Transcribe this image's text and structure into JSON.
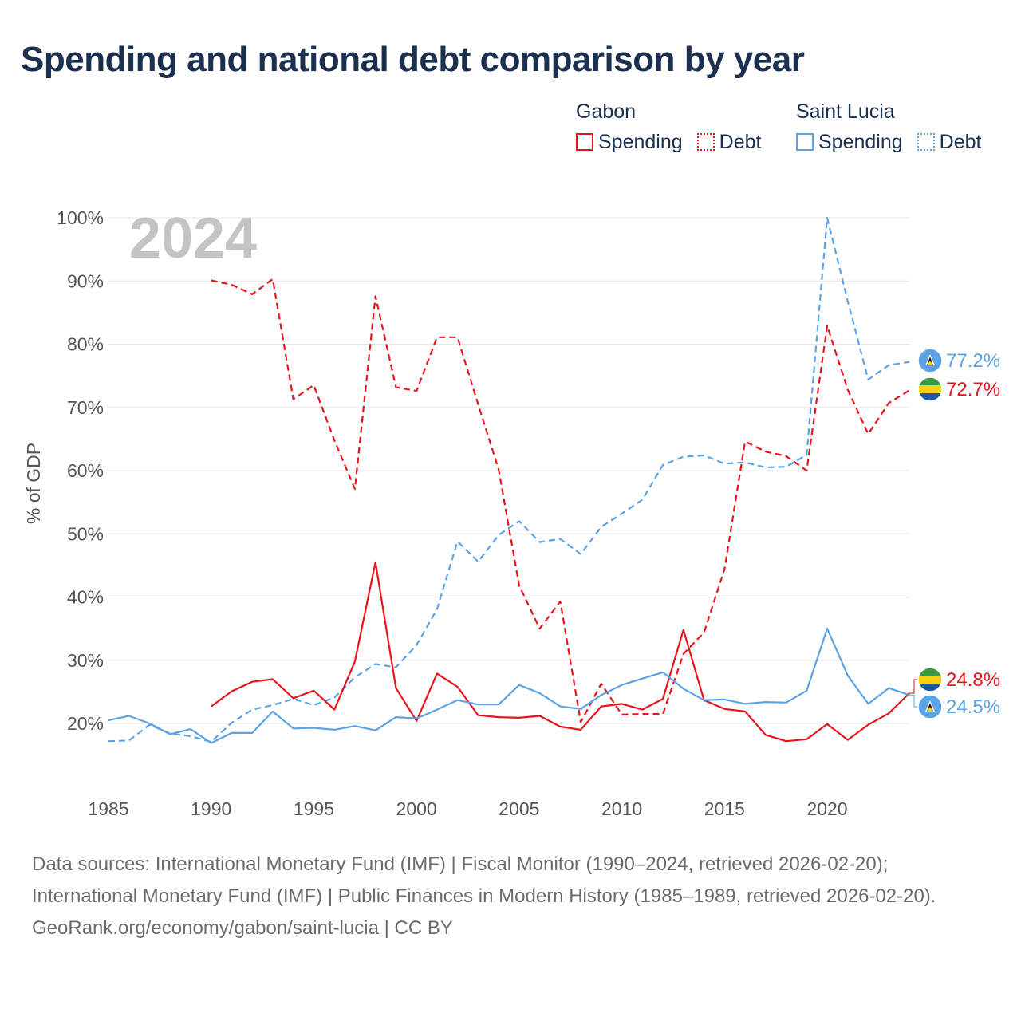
{
  "title": "Spending and national debt comparison by year",
  "legend": {
    "groups": [
      {
        "name": "Gabon",
        "items": [
          "Spending",
          "Debt"
        ]
      },
      {
        "name": "Saint Lucia",
        "items": [
          "Spending",
          "Debt"
        ]
      }
    ]
  },
  "colors": {
    "gabon": "#e8141c",
    "saint_lucia": "#5ba3e6",
    "grid": "#e6e6e6",
    "year_label": "#c4c4c4"
  },
  "footer": {
    "sources": "Data sources: International Monetary Fund (IMF) | Fiscal Monitor (1990–2024, retrieved 2026-02-20); International Monetary Fund (IMF) | Public Finances in Modern History (1985–1989, retrieved 2026-02-20).",
    "credit": "GeoRank.org/economy/gabon/saint-lucia | CC BY"
  },
  "chart_data": {
    "type": "line",
    "year_label": "2024",
    "ylabel": "% of GDP",
    "xlabel": "",
    "xlim": [
      1985,
      2024
    ],
    "ylim": [
      12,
      100
    ],
    "x_ticks": [
      1985,
      1990,
      1995,
      2000,
      2005,
      2010,
      2015,
      2020
    ],
    "y_ticks": [
      20,
      30,
      40,
      50,
      60,
      70,
      80,
      90,
      100
    ],
    "series": [
      {
        "name": "Gabon Debt",
        "country": "Gabon",
        "metric": "Debt",
        "style": "dashed",
        "color": "#e8141c",
        "x": [
          1990,
          1991,
          1992,
          1993,
          1994,
          1995,
          1996,
          1997,
          1998,
          1999,
          2000,
          2001,
          2002,
          2003,
          2004,
          2005,
          2006,
          2007,
          2008,
          2009,
          2010,
          2011,
          2012,
          2013,
          2014,
          2015,
          2016,
          2017,
          2018,
          2019,
          2020,
          2021,
          2022,
          2023,
          2024
        ],
        "values": [
          90.1,
          89.4,
          87.9,
          90.3,
          71.3,
          73.5,
          64.8,
          57.1,
          87.6,
          73.2,
          72.6,
          81.1,
          81.1,
          70.5,
          60.2,
          41.8,
          35.0,
          39.3,
          20.2,
          26.3,
          21.4,
          21.5,
          21.5,
          31.0,
          34.4,
          44.4,
          64.6,
          63.0,
          62.3,
          60.0,
          82.9,
          72.8,
          65.8,
          70.7,
          72.7
        ],
        "end_label": "72.7%"
      },
      {
        "name": "Saint Lucia Debt",
        "country": "Saint Lucia",
        "metric": "Debt",
        "style": "dashed",
        "color": "#5ba3e6",
        "x": [
          1985,
          1986,
          1987,
          1988,
          1989,
          1990,
          1991,
          1992,
          1993,
          1994,
          1995,
          1996,
          1997,
          1998,
          1999,
          2000,
          2001,
          2002,
          2003,
          2004,
          2005,
          2006,
          2007,
          2008,
          2009,
          2010,
          2011,
          2012,
          2013,
          2014,
          2015,
          2016,
          2017,
          2018,
          2019,
          2020,
          2021,
          2022,
          2023,
          2024
        ],
        "values": [
          17.2,
          17.3,
          19.8,
          18.4,
          18.0,
          17.1,
          20.1,
          22.2,
          22.9,
          23.9,
          22.9,
          24.1,
          27.3,
          29.4,
          28.9,
          32.4,
          38.1,
          48.8,
          45.6,
          49.8,
          52.0,
          48.7,
          49.2,
          46.8,
          51.1,
          53.2,
          55.4,
          60.9,
          62.2,
          62.4,
          61.1,
          61.3,
          60.5,
          60.6,
          62.5,
          100.0,
          86.8,
          74.4,
          76.7,
          77.2
        ],
        "end_label": "77.2%"
      },
      {
        "name": "Gabon Spending",
        "country": "Gabon",
        "metric": "Spending",
        "style": "solid",
        "color": "#e8141c",
        "x": [
          1990,
          1991,
          1992,
          1993,
          1994,
          1995,
          1996,
          1997,
          1998,
          1999,
          2000,
          2001,
          2002,
          2003,
          2004,
          2005,
          2006,
          2007,
          2008,
          2009,
          2010,
          2011,
          2012,
          2013,
          2014,
          2015,
          2016,
          2017,
          2018,
          2019,
          2020,
          2021,
          2022,
          2023,
          2024
        ],
        "values": [
          22.7,
          25.1,
          26.6,
          27.0,
          24.0,
          25.2,
          22.2,
          29.8,
          45.5,
          25.6,
          20.4,
          27.9,
          25.8,
          21.3,
          21.0,
          20.9,
          21.2,
          19.5,
          19.0,
          22.7,
          23.1,
          22.2,
          23.9,
          34.8,
          23.7,
          22.3,
          21.9,
          18.2,
          17.2,
          17.5,
          19.9,
          17.4,
          19.8,
          21.6,
          24.8
        ],
        "end_label": "24.8%"
      },
      {
        "name": "Saint Lucia Spending",
        "country": "Saint Lucia",
        "metric": "Spending",
        "style": "solid",
        "color": "#5ba3e6",
        "x": [
          1985,
          1986,
          1987,
          1988,
          1989,
          1990,
          1991,
          1992,
          1993,
          1994,
          1995,
          1996,
          1997,
          1998,
          1999,
          2000,
          2001,
          2002,
          2003,
          2004,
          2005,
          2006,
          2007,
          2008,
          2009,
          2010,
          2011,
          2012,
          2013,
          2014,
          2015,
          2016,
          2017,
          2018,
          2019,
          2020,
          2021,
          2022,
          2023,
          2024
        ],
        "values": [
          20.5,
          21.2,
          20.0,
          18.3,
          19.1,
          16.9,
          18.5,
          18.5,
          21.9,
          19.2,
          19.3,
          19.0,
          19.6,
          18.9,
          21.0,
          20.8,
          22.2,
          23.7,
          23.0,
          23.0,
          26.1,
          24.8,
          22.7,
          22.3,
          24.5,
          26.1,
          27.1,
          28.1,
          25.5,
          23.7,
          23.8,
          23.1,
          23.4,
          23.3,
          25.2,
          35.0,
          27.6,
          23.1,
          25.6,
          24.5
        ],
        "end_label": "24.5%"
      }
    ]
  }
}
